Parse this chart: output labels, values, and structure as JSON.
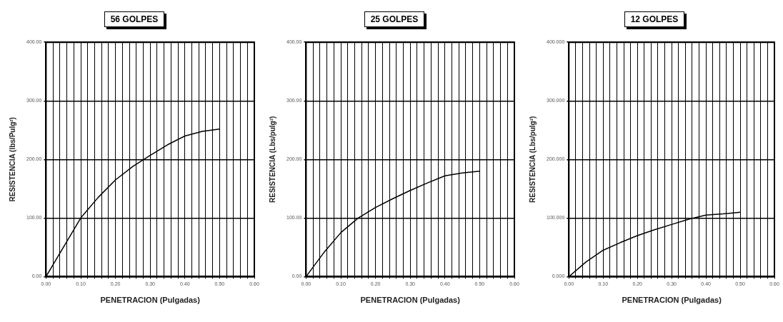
{
  "chart_data": [
    {
      "type": "line",
      "title": "56 GOLPES",
      "xlabel": "PENETRACION (Pulgadas)",
      "ylabel": "RESISTENCIA (lbs/Pulg²)",
      "color": "#000000",
      "grid": true,
      "marker": "none",
      "line_style": "solid",
      "x": [
        0,
        0.025,
        0.05,
        0.075,
        0.1,
        0.15,
        0.2,
        0.25,
        0.3,
        0.35,
        0.4,
        0.45,
        0.5
      ],
      "values": [
        0,
        25,
        50,
        75,
        100,
        135,
        165,
        188,
        207,
        225,
        240,
        248,
        252
      ],
      "xlim": [
        0,
        0.6
      ],
      "xticks": [
        {
          "value": 0,
          "label": "0.00"
        },
        {
          "value": 0.02,
          "label": null
        },
        {
          "value": 0.04,
          "label": null
        },
        {
          "value": 0.06,
          "label": null
        },
        {
          "value": 0.08,
          "label": null
        },
        {
          "value": 0.1,
          "label": "0.10"
        },
        {
          "value": 0.12,
          "label": null
        },
        {
          "value": 0.14,
          "label": null
        },
        {
          "value": 0.16,
          "label": null
        },
        {
          "value": 0.18,
          "label": null
        },
        {
          "value": 0.2,
          "label": "0.20"
        },
        {
          "value": 0.22,
          "label": null
        },
        {
          "value": 0.24,
          "label": null
        },
        {
          "value": 0.26,
          "label": null
        },
        {
          "value": 0.28,
          "label": null
        },
        {
          "value": 0.3,
          "label": "0.30"
        },
        {
          "value": 0.32,
          "label": null
        },
        {
          "value": 0.34,
          "label": null
        },
        {
          "value": 0.36,
          "label": null
        },
        {
          "value": 0.38,
          "label": null
        },
        {
          "value": 0.4,
          "label": "0.40"
        },
        {
          "value": 0.42,
          "label": null
        },
        {
          "value": 0.44,
          "label": null
        },
        {
          "value": 0.46,
          "label": null
        },
        {
          "value": 0.48,
          "label": null
        },
        {
          "value": 0.5,
          "label": "0.50"
        },
        {
          "value": 0.52,
          "label": null
        },
        {
          "value": 0.54,
          "label": null
        },
        {
          "value": 0.56,
          "label": null
        },
        {
          "value": 0.58,
          "label": null
        },
        {
          "value": 0.6,
          "label": "0.60"
        }
      ],
      "ylim": [
        0,
        400
      ],
      "yticks": [
        {
          "value": 0,
          "label": "0.00"
        },
        {
          "value": 100,
          "label": "100.00"
        },
        {
          "value": 200,
          "label": "200.00"
        },
        {
          "value": 300,
          "label": "300.00"
        },
        {
          "value": 400,
          "label": "400.00"
        }
      ]
    },
    {
      "type": "line",
      "title": "25 GOLPES",
      "xlabel": "PENETRACION (Pulgadas)",
      "ylabel": "RESISTENCIA (Lbs/pulg²)",
      "color": "#000000",
      "grid": true,
      "marker": "none",
      "line_style": "solid",
      "x": [
        0,
        0.05,
        0.1,
        0.15,
        0.2,
        0.25,
        0.3,
        0.35,
        0.4,
        0.45,
        0.5
      ],
      "values": [
        0,
        40,
        75,
        100,
        118,
        133,
        147,
        160,
        172,
        177,
        180
      ],
      "xlim": [
        0,
        0.6
      ],
      "xticks": [
        {
          "value": 0,
          "label": "0.00"
        },
        {
          "value": 0.02,
          "label": null
        },
        {
          "value": 0.04,
          "label": null
        },
        {
          "value": 0.06,
          "label": null
        },
        {
          "value": 0.08,
          "label": null
        },
        {
          "value": 0.1,
          "label": "0.10"
        },
        {
          "value": 0.12,
          "label": null
        },
        {
          "value": 0.14,
          "label": null
        },
        {
          "value": 0.16,
          "label": null
        },
        {
          "value": 0.18,
          "label": null
        },
        {
          "value": 0.2,
          "label": "0.20"
        },
        {
          "value": 0.22,
          "label": null
        },
        {
          "value": 0.24,
          "label": null
        },
        {
          "value": 0.26,
          "label": null
        },
        {
          "value": 0.28,
          "label": null
        },
        {
          "value": 0.3,
          "label": "0.30"
        },
        {
          "value": 0.32,
          "label": null
        },
        {
          "value": 0.34,
          "label": null
        },
        {
          "value": 0.36,
          "label": null
        },
        {
          "value": 0.38,
          "label": null
        },
        {
          "value": 0.4,
          "label": "0.40"
        },
        {
          "value": 0.42,
          "label": null
        },
        {
          "value": 0.44,
          "label": null
        },
        {
          "value": 0.46,
          "label": null
        },
        {
          "value": 0.48,
          "label": null
        },
        {
          "value": 0.5,
          "label": "0.50"
        },
        {
          "value": 0.52,
          "label": null
        },
        {
          "value": 0.54,
          "label": null
        },
        {
          "value": 0.56,
          "label": null
        },
        {
          "value": 0.58,
          "label": null
        },
        {
          "value": 0.6,
          "label": "0.60"
        }
      ],
      "ylim": [
        0,
        400
      ],
      "yticks": [
        {
          "value": 0,
          "label": "0.00"
        },
        {
          "value": 100,
          "label": "100.00"
        },
        {
          "value": 200,
          "label": "200.00"
        },
        {
          "value": 300,
          "label": "300.00"
        },
        {
          "value": 400,
          "label": "400.00"
        }
      ]
    },
    {
      "type": "line",
      "title": "12 GOLPES",
      "xlabel": "PENETRACION (Pulgadas)",
      "ylabel": "RESISTENCIA (Lbs/pulg²)",
      "color": "#000000",
      "grid": true,
      "marker": "none",
      "line_style": "solid",
      "x": [
        0,
        0.05,
        0.1,
        0.15,
        0.2,
        0.25,
        0.3,
        0.35,
        0.4,
        0.45,
        0.5
      ],
      "values": [
        0,
        25,
        45,
        58,
        70,
        80,
        89,
        98,
        105,
        107,
        110
      ],
      "xlim": [
        0,
        0.6
      ],
      "xticks": [
        {
          "value": 0,
          "label": "0.00"
        },
        {
          "value": 0.02,
          "label": null
        },
        {
          "value": 0.04,
          "label": null
        },
        {
          "value": 0.06,
          "label": null
        },
        {
          "value": 0.08,
          "label": null
        },
        {
          "value": 0.1,
          "label": "0.10"
        },
        {
          "value": 0.12,
          "label": null
        },
        {
          "value": 0.14,
          "label": null
        },
        {
          "value": 0.16,
          "label": null
        },
        {
          "value": 0.18,
          "label": null
        },
        {
          "value": 0.2,
          "label": "0.20"
        },
        {
          "value": 0.22,
          "label": null
        },
        {
          "value": 0.24,
          "label": null
        },
        {
          "value": 0.26,
          "label": null
        },
        {
          "value": 0.28,
          "label": null
        },
        {
          "value": 0.3,
          "label": "0.30"
        },
        {
          "value": 0.32,
          "label": null
        },
        {
          "value": 0.34,
          "label": null
        },
        {
          "value": 0.36,
          "label": null
        },
        {
          "value": 0.38,
          "label": null
        },
        {
          "value": 0.4,
          "label": "0.40"
        },
        {
          "value": 0.42,
          "label": null
        },
        {
          "value": 0.44,
          "label": null
        },
        {
          "value": 0.46,
          "label": null
        },
        {
          "value": 0.48,
          "label": null
        },
        {
          "value": 0.5,
          "label": "0.50"
        },
        {
          "value": 0.52,
          "label": null
        },
        {
          "value": 0.54,
          "label": null
        },
        {
          "value": 0.56,
          "label": null
        },
        {
          "value": 0.58,
          "label": null
        },
        {
          "value": 0.6,
          "label": "0.60"
        }
      ],
      "ylim": [
        0,
        400
      ],
      "yticks": [
        {
          "value": 0,
          "label": "0.000"
        },
        {
          "value": 100,
          "label": "100.000"
        },
        {
          "value": 200,
          "label": "200.000"
        },
        {
          "value": 300,
          "label": "300.000"
        },
        {
          "value": 400,
          "label": "400.000"
        }
      ]
    }
  ]
}
